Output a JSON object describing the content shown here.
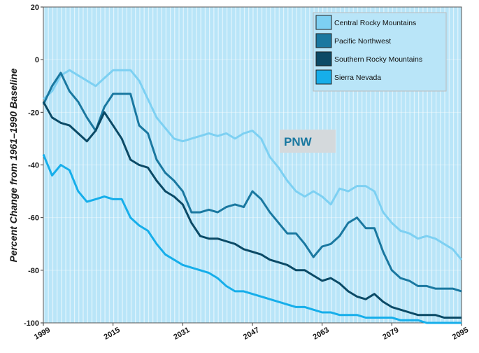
{
  "chart_data": {
    "type": "line",
    "ylabel": "Percent Change from 1961–1990 Baseline",
    "annotation": "PNW",
    "x": [
      1999,
      2001,
      2003,
      2005,
      2007,
      2009,
      2011,
      2013,
      2015,
      2017,
      2019,
      2021,
      2023,
      2025,
      2027,
      2029,
      2031,
      2033,
      2035,
      2037,
      2039,
      2041,
      2043,
      2045,
      2047,
      2049,
      2051,
      2053,
      2055,
      2057,
      2059,
      2061,
      2063,
      2065,
      2067,
      2069,
      2071,
      2073,
      2075,
      2077,
      2079,
      2081,
      2083,
      2085,
      2087,
      2089,
      2091,
      2093,
      2095
    ],
    "series": [
      {
        "name": "Central Rocky Mountains",
        "color": "#7dd0f2",
        "values": [
          -15,
          -12,
          -6,
          -4,
          -6,
          -8,
          -10,
          -7,
          -4,
          -4,
          -4,
          -8,
          -15,
          -22,
          -26,
          -30,
          -31,
          -30,
          -29,
          -28,
          -29,
          -28,
          -30,
          -28,
          -27,
          -30,
          -37,
          -41,
          -46,
          -50,
          -52,
          -50,
          -52,
          -55,
          -49,
          -50,
          -48,
          -48,
          -50,
          -58,
          -62,
          -65,
          -66,
          -68,
          -67,
          -68,
          -70,
          -72,
          -76
        ]
      },
      {
        "name": "Pacific Northwest",
        "color": "#1a78a0",
        "values": [
          -17,
          -10,
          -5,
          -12,
          -16,
          -22,
          -27,
          -18,
          -13,
          -13,
          -13,
          -25,
          -28,
          -38,
          -43,
          -46,
          -50,
          -58,
          -58,
          -57,
          -58,
          -56,
          -55,
          -56,
          -50,
          -53,
          -58,
          -62,
          -66,
          -66,
          -70,
          -75,
          -71,
          -70,
          -67,
          -62,
          -60,
          -64,
          -64,
          -73,
          -80,
          -83,
          -84,
          -86,
          -86,
          -87,
          -87,
          -87,
          -88
        ]
      },
      {
        "name": "Southern Rocky Mountains",
        "color": "#0b4a66",
        "values": [
          -16,
          -22,
          -24,
          -25,
          -28,
          -31,
          -27,
          -20,
          -25,
          -30,
          -38,
          -40,
          -41,
          -46,
          -50,
          -52,
          -55,
          -62,
          -67,
          -68,
          -68,
          -69,
          -70,
          -72,
          -73,
          -74,
          -76,
          -77,
          -78,
          -80,
          -80,
          -82,
          -84,
          -83,
          -85,
          -88,
          -90,
          -91,
          -89,
          -92,
          -94,
          -95,
          -96,
          -97,
          -97,
          -97,
          -98,
          -98,
          -98
        ]
      },
      {
        "name": "Sierra Nevada",
        "color": "#16aeea",
        "values": [
          -36,
          -44,
          -40,
          -42,
          -50,
          -54,
          -53,
          -52,
          -53,
          -53,
          -60,
          -63,
          -65,
          -70,
          -74,
          -76,
          -78,
          -79,
          -80,
          -81,
          -83,
          -86,
          -88,
          -88,
          -89,
          -90,
          -91,
          -92,
          -93,
          -94,
          -94,
          -95,
          -96,
          -96,
          -97,
          -97,
          -97,
          -98,
          -98,
          -98,
          -98,
          -99,
          -99,
          -99,
          -100,
          -100,
          -100,
          -100,
          -100
        ]
      }
    ],
    "xlim": [
      1999,
      2095
    ],
    "xticks": [
      1999,
      2015,
      2031,
      2047,
      2063,
      2079,
      2095
    ],
    "ylim": [
      -100,
      20
    ],
    "yticks": [
      -100,
      -80,
      -60,
      -40,
      -20,
      0,
      20
    ],
    "grid": true,
    "legend": "upper right"
  }
}
